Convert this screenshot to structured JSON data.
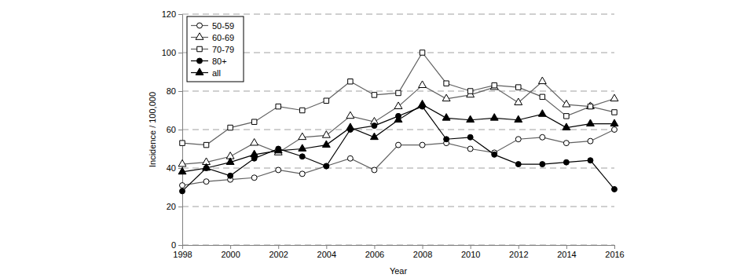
{
  "chart_data": {
    "type": "line",
    "x_label": "Year",
    "y_label": "Incidence / 100,000",
    "x": [
      1998,
      1999,
      2000,
      2001,
      2002,
      2003,
      2004,
      2005,
      2006,
      2007,
      2008,
      2009,
      2010,
      2011,
      2012,
      2013,
      2014,
      2015,
      2016
    ],
    "series": [
      {
        "name": "50-59",
        "color": "#606060",
        "marker": "circle-open",
        "values": [
          31,
          33,
          34,
          35,
          39,
          37,
          41,
          45,
          39,
          52,
          52,
          53,
          50,
          48,
          55,
          56,
          53,
          54,
          60
        ]
      },
      {
        "name": "60-69",
        "color": "#606060",
        "marker": "triangle-open",
        "values": [
          42,
          43,
          46,
          53,
          48,
          56,
          57,
          67,
          64,
          72,
          83,
          76,
          78,
          82,
          74,
          85,
          73,
          72,
          76
        ]
      },
      {
        "name": "70-79",
        "color": "#606060",
        "marker": "square-open",
        "values": [
          53,
          52,
          61,
          64,
          72,
          70,
          75,
          85,
          78,
          79,
          100,
          84,
          80,
          83,
          82,
          77,
          67,
          72,
          69
        ]
      },
      {
        "name": "80+",
        "color": "#000000",
        "marker": "circle",
        "values": [
          28,
          40,
          36,
          45,
          50,
          46,
          41,
          60,
          62,
          67,
          72,
          55,
          56,
          47,
          42,
          42,
          43,
          44,
          29
        ]
      },
      {
        "name": "all",
        "color": "#000000",
        "marker": "triangle",
        "values": [
          38,
          40,
          43,
          47,
          49,
          50,
          52,
          61,
          56,
          65,
          73,
          66,
          65,
          66,
          65,
          68,
          61,
          63,
          63
        ]
      }
    ],
    "xlim": [
      1998,
      2016
    ],
    "xticks": [
      1998,
      2000,
      2002,
      2004,
      2006,
      2008,
      2010,
      2012,
      2014,
      2016
    ],
    "ylim": [
      0,
      120
    ],
    "yticks": [
      0,
      20,
      40,
      60,
      80,
      100,
      120
    ],
    "grid": true,
    "legend": "top-left"
  }
}
